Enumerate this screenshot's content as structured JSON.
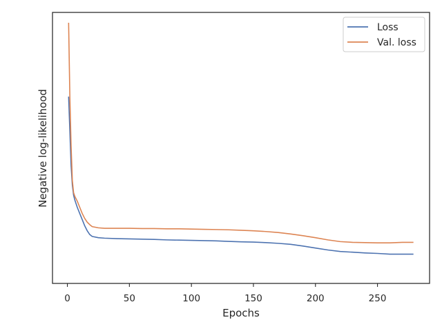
{
  "chart_data": {
    "type": "line",
    "title": "",
    "xlabel": "Epochs",
    "ylabel": "Negative log-likelihood",
    "xlim": [
      -12,
      292
    ],
    "ylim": [
      0.0,
      1.0
    ],
    "xticks": [
      0,
      50,
      100,
      150,
      200,
      250
    ],
    "xtick_labels": [
      "0",
      "50",
      "100",
      "150",
      "200",
      "250"
    ],
    "yticks_visible": false,
    "grid": false,
    "legend_position": "top-right",
    "series": [
      {
        "name": "Loss",
        "color": "#4c72b0",
        "x": [
          1,
          2,
          3,
          4,
          5,
          6,
          7,
          8,
          10,
          12,
          14,
          16,
          18,
          20,
          25,
          30,
          40,
          50,
          60,
          70,
          80,
          90,
          100,
          110,
          120,
          130,
          140,
          150,
          160,
          170,
          180,
          190,
          200,
          210,
          220,
          230,
          240,
          250,
          260,
          270,
          279
        ],
        "y": [
          0.7,
          0.56,
          0.42,
          0.34,
          0.3,
          0.28,
          0.265,
          0.25,
          0.225,
          0.2,
          0.175,
          0.155,
          0.14,
          0.132,
          0.127,
          0.125,
          0.123,
          0.122,
          0.121,
          0.12,
          0.118,
          0.117,
          0.116,
          0.115,
          0.114,
          0.112,
          0.11,
          0.109,
          0.107,
          0.104,
          0.1,
          0.093,
          0.085,
          0.077,
          0.071,
          0.068,
          0.065,
          0.063,
          0.06,
          0.06,
          0.06
        ]
      },
      {
        "name": "Val. loss",
        "color": "#dd8452",
        "x": [
          1,
          2,
          3,
          4,
          5,
          6,
          7,
          8,
          10,
          12,
          14,
          16,
          18,
          20,
          25,
          30,
          40,
          50,
          60,
          70,
          80,
          90,
          100,
          110,
          120,
          130,
          140,
          150,
          160,
          170,
          180,
          190,
          200,
          210,
          220,
          230,
          240,
          250,
          260,
          270,
          279
        ],
        "y": [
          1.0,
          0.7,
          0.5,
          0.36,
          0.31,
          0.295,
          0.285,
          0.275,
          0.25,
          0.225,
          0.205,
          0.19,
          0.18,
          0.172,
          0.167,
          0.165,
          0.165,
          0.165,
          0.164,
          0.164,
          0.163,
          0.163,
          0.162,
          0.161,
          0.16,
          0.159,
          0.157,
          0.155,
          0.152,
          0.148,
          0.142,
          0.135,
          0.127,
          0.118,
          0.111,
          0.108,
          0.107,
          0.106,
          0.106,
          0.108,
          0.108
        ]
      }
    ]
  }
}
